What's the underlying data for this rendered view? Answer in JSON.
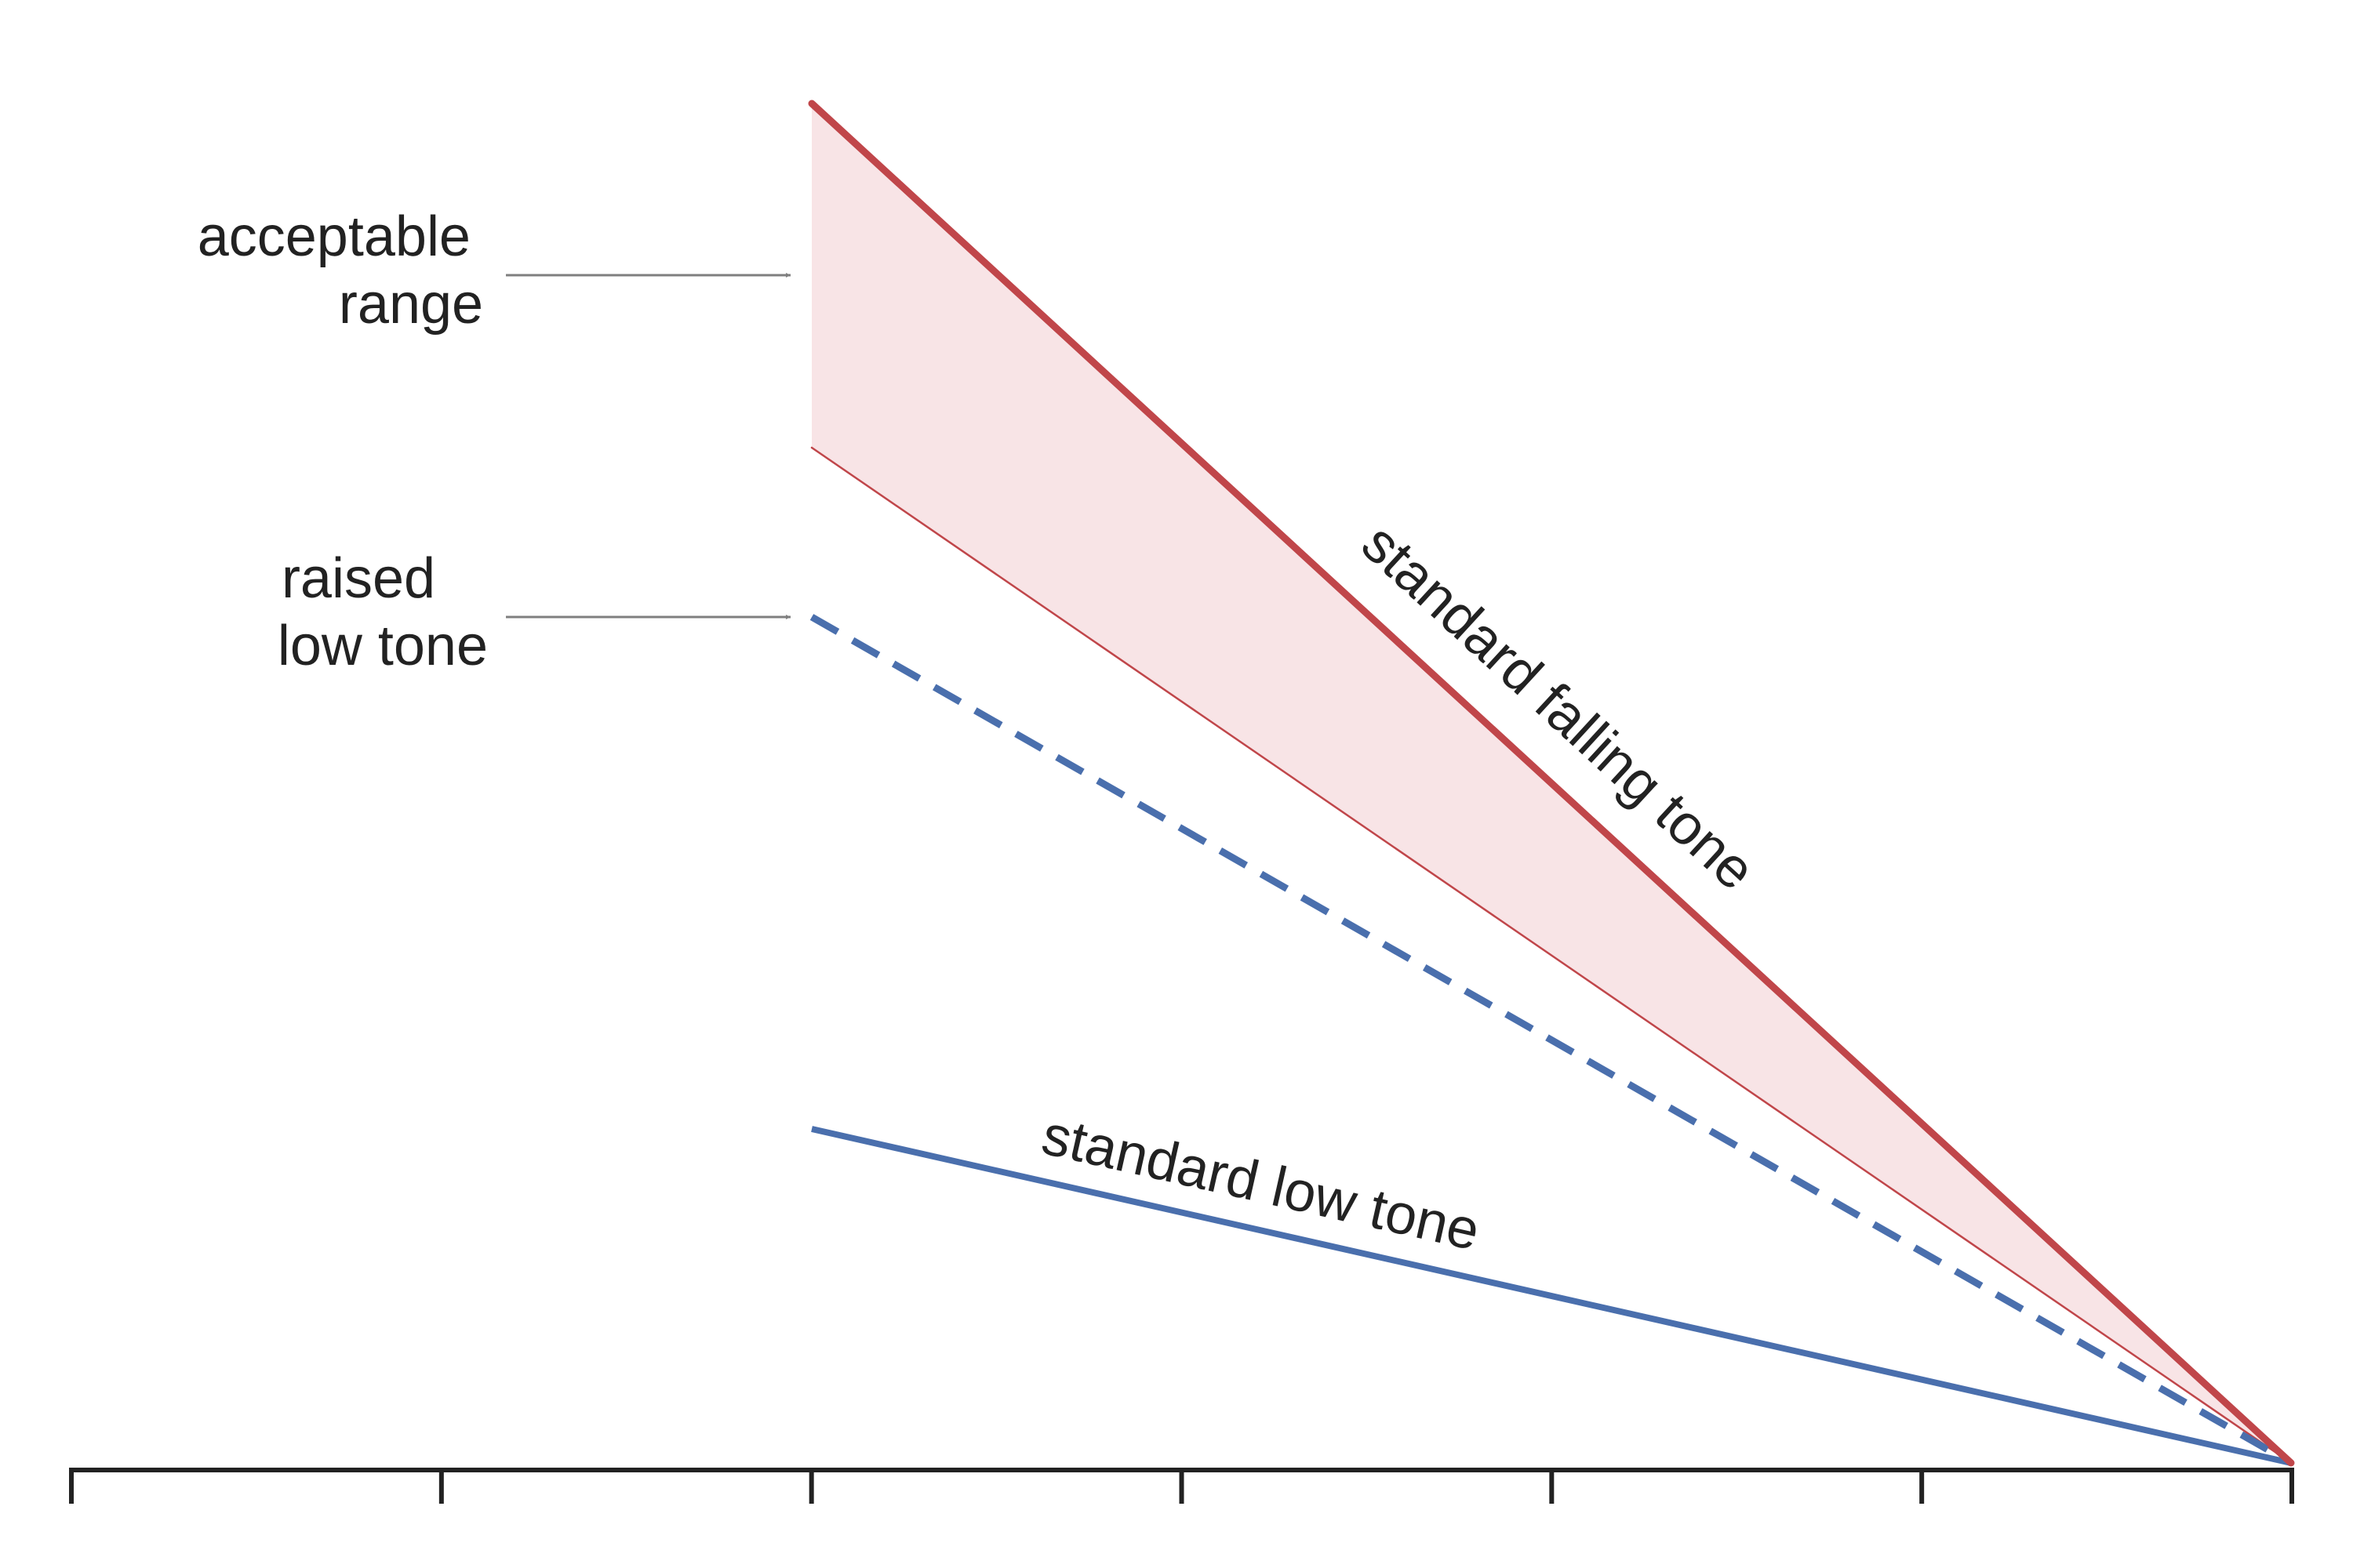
{
  "colors": {
    "falling_tone": "#c0464a",
    "range_fill": "#f8e4e6",
    "low_tone": "#4a6fad",
    "arrow": "#7f7f7f",
    "axis": "#222222",
    "text": "#222222"
  },
  "labels": {
    "acceptable_range": [
      "acceptable",
      "range"
    ],
    "raised_low_tone": [
      "raised",
      "low tone"
    ],
    "standard_falling_tone": "standard falling tone",
    "standard_low_tone": "standard low tone"
  },
  "axis": {
    "tick_count": 7
  }
}
